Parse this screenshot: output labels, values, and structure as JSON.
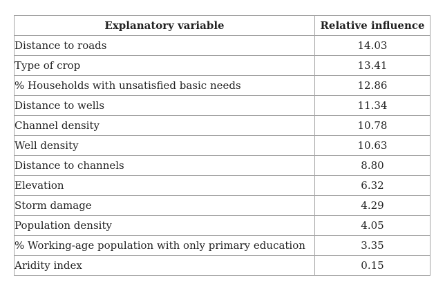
{
  "table": {
    "headers": {
      "variable": "Explanatory variable",
      "value": "Relative influence"
    },
    "rows": [
      {
        "variable": "Distance to roads",
        "value": "14.03"
      },
      {
        "variable": "Type of crop",
        "value": "13.41"
      },
      {
        "variable": "% Households with unsatisfied basic needs",
        "value": "12.86"
      },
      {
        "variable": "Distance to wells",
        "value": "11.34"
      },
      {
        "variable": "Channel density",
        "value": "10.78"
      },
      {
        "variable": "Well density",
        "value": "10.63"
      },
      {
        "variable": "Distance to channels",
        "value": "8.80"
      },
      {
        "variable": "Elevation",
        "value": "6.32"
      },
      {
        "variable": "Storm damage",
        "value": "4.29"
      },
      {
        "variable": "Population density",
        "value": "4.05"
      },
      {
        "variable": "% Working-age population with only primary education",
        "value": "3.35"
      },
      {
        "variable": "Aridity index",
        "value": "0.15"
      }
    ]
  },
  "chart_data": {
    "type": "table",
    "title": "",
    "columns": [
      "Explanatory variable",
      "Relative influence"
    ],
    "categories": [
      "Distance to roads",
      "Type of crop",
      "% Households with unsatisfied basic needs",
      "Distance to wells",
      "Channel density",
      "Well density",
      "Distance to channels",
      "Elevation",
      "Storm damage",
      "Population density",
      "% Working-age population with only primary education",
      "Aridity index"
    ],
    "values": [
      14.03,
      13.41,
      12.86,
      11.34,
      10.78,
      10.63,
      8.8,
      6.32,
      4.29,
      4.05,
      3.35,
      0.15
    ]
  },
  "colors": {
    "background": "#ffffff",
    "border": "#a3a3a3",
    "text": "#222222"
  }
}
